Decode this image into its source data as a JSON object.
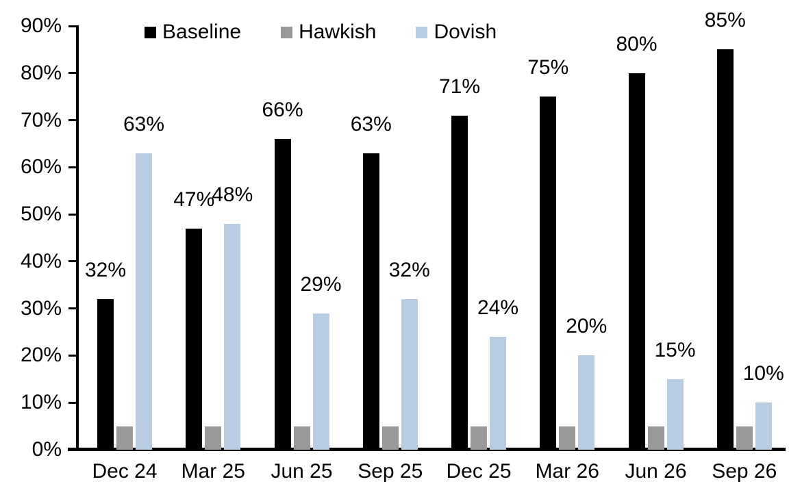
{
  "chart_data": {
    "type": "bar",
    "title": "",
    "xlabel": "",
    "ylabel": "",
    "categories": [
      "Dec 24",
      "Mar 25",
      "Jun 25",
      "Sep 25",
      "Dec 25",
      "Mar 26",
      "Jun 26",
      "Sep 26"
    ],
    "series": [
      {
        "name": "Baseline",
        "color": "#000000",
        "values": [
          32,
          47,
          66,
          63,
          71,
          75,
          80,
          85
        ],
        "labels": [
          "32%",
          "47%",
          "66%",
          "63%",
          "71%",
          "75%",
          "80%",
          "85%"
        ]
      },
      {
        "name": "Hawkish",
        "color": "#999999",
        "values": [
          5,
          5,
          5,
          5,
          5,
          5,
          5,
          5
        ],
        "labels": [
          "",
          "",
          "",
          "",
          "",
          "",
          "",
          ""
        ]
      },
      {
        "name": "Dovish",
        "color": "#b8cce4",
        "values": [
          63,
          48,
          29,
          32,
          24,
          20,
          15,
          10
        ],
        "labels": [
          "63%",
          "48%",
          "29%",
          "32%",
          "24%",
          "20%",
          "15%",
          "10%"
        ]
      }
    ],
    "ylim": [
      0,
      90
    ],
    "ytick_labels": [
      "0%",
      "10%",
      "20%",
      "30%",
      "40%",
      "50%",
      "60%",
      "70%",
      "80%",
      "90%"
    ],
    "ytick_values": [
      0,
      10,
      20,
      30,
      40,
      50,
      60,
      70,
      80,
      90
    ],
    "grid": false,
    "legend_position": "top",
    "axis_color": "#000000",
    "background_color": "#ffffff"
  }
}
